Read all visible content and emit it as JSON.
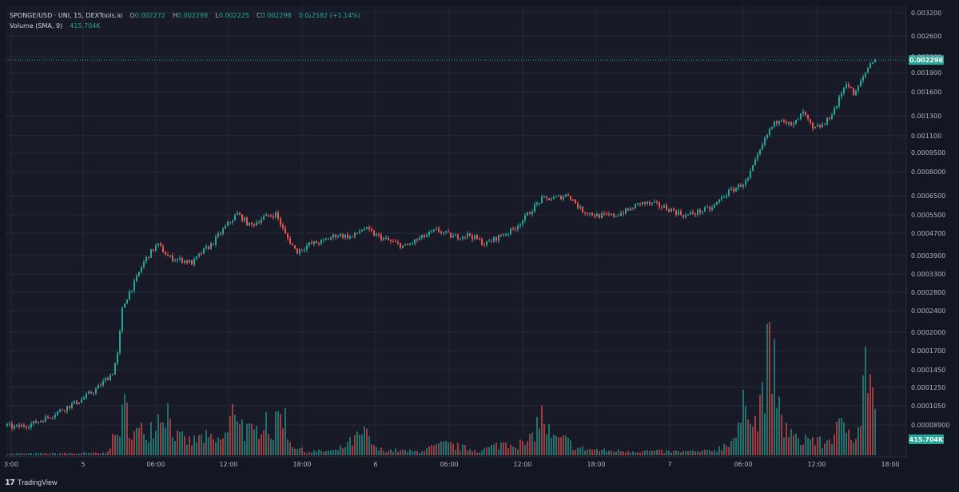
{
  "legend": {
    "symbol": "SPONGE/USD · UNI, 15, DEXTools.io",
    "o_label": "O",
    "o_value": "0.002272",
    "h_label": "H",
    "h_value": "0.002298",
    "l_label": "L",
    "l_value": "0.002225",
    "c_label": "C",
    "c_value": "0.002298",
    "change": "0.0₄2582 (+1.14%)",
    "volume_label": "Volume (SMA, 9)",
    "volume_value": "415.704K"
  },
  "brand": {
    "logo": "17",
    "name": "TradingView"
  },
  "colors": {
    "up": "#26a69a",
    "down": "#ef5350",
    "background": "#181b27",
    "grid": "#232734",
    "text": "#b2b5be"
  },
  "chart_data": {
    "type": "candlestick",
    "y_axis_labels": [
      "0.003200",
      "0.002600",
      "0.002200",
      "0.001900",
      "0.001600",
      "0.001300",
      "0.001100",
      "0.0009500",
      "0.0008000",
      "0.0006500",
      "0.0005500",
      "0.0004700",
      "0.0003900",
      "0.0003300",
      "0.0002800",
      "0.0002400",
      "0.0002000",
      "0.0001700",
      "0.0001450",
      "0.0001250",
      "0.0001050",
      "0.00008900"
    ],
    "x_axis_labels": [
      "3:00",
      "5",
      "06:00",
      "12:00",
      "18:00",
      "6",
      "06:00",
      "12:00",
      "18:00",
      "7",
      "06:00",
      "12:00",
      "18:00"
    ],
    "last_price_label": "0.002298",
    "volume_label": "415.704K",
    "price_range": [
      7.6e-05,
      0.0034
    ],
    "scale": "log",
    "price_anchors": [
      [
        0,
        9.5e-05
      ],
      [
        18,
        9.3e-05
      ],
      [
        40,
        9.6e-05
      ],
      [
        60,
        0.000102
      ],
      [
        80,
        0.00011
      ],
      [
        100,
        0.000118
      ],
      [
        120,
        0.00013
      ],
      [
        140,
        0.00015
      ],
      [
        147,
        0.00018
      ],
      [
        152,
        0.00026
      ],
      [
        160,
        0.0003
      ],
      [
        168,
        0.00033
      ],
      [
        180,
        0.0004
      ],
      [
        196,
        0.00046
      ],
      [
        210,
        0.00041
      ],
      [
        228,
        0.0004
      ],
      [
        240,
        0.00039
      ],
      [
        252,
        0.00043
      ],
      [
        264,
        0.00046
      ],
      [
        280,
        0.00053
      ],
      [
        296,
        0.0006
      ],
      [
        312,
        0.00054
      ],
      [
        328,
        0.00058
      ],
      [
        344,
        0.0006
      ],
      [
        356,
        0.0005
      ],
      [
        370,
        0.00043
      ],
      [
        386,
        0.00046
      ],
      [
        402,
        0.00047
      ],
      [
        420,
        0.0005
      ],
      [
        440,
        0.00049
      ],
      [
        454,
        0.00053
      ],
      [
        468,
        0.0005
      ],
      [
        488,
        0.00047
      ],
      [
        506,
        0.00045
      ],
      [
        522,
        0.00048
      ],
      [
        546,
        0.00052
      ],
      [
        566,
        0.00049
      ],
      [
        586,
        0.0005
      ],
      [
        606,
        0.00046
      ],
      [
        622,
        0.00049
      ],
      [
        640,
        0.00052
      ],
      [
        656,
        0.00058
      ],
      [
        676,
        0.00068
      ],
      [
        696,
        0.00069
      ],
      [
        710,
        0.00071
      ],
      [
        726,
        0.00062
      ],
      [
        746,
        0.00059
      ],
      [
        766,
        0.00059
      ],
      [
        786,
        0.00062
      ],
      [
        800,
        0.00066
      ],
      [
        820,
        0.00065
      ],
      [
        840,
        0.00062
      ],
      [
        856,
        0.00059
      ],
      [
        872,
        0.00061
      ],
      [
        890,
        0.00063
      ],
      [
        906,
        0.00071
      ],
      [
        922,
        0.00076
      ],
      [
        934,
        0.0008
      ],
      [
        948,
        0.001
      ],
      [
        962,
        0.00125
      ],
      [
        976,
        0.0014
      ],
      [
        990,
        0.00128
      ],
      [
        1004,
        0.00145
      ],
      [
        1016,
        0.00125
      ],
      [
        1032,
        0.00132
      ],
      [
        1046,
        0.00155
      ],
      [
        1058,
        0.0019
      ],
      [
        1068,
        0.00168
      ],
      [
        1078,
        0.00195
      ],
      [
        1090,
        0.00229
      ],
      [
        1096,
        0.002298
      ]
    ],
    "volume_anchors": [
      [
        0,
        0.02
      ],
      [
        130,
        0.03
      ],
      [
        146,
        0.3
      ],
      [
        156,
        0.65
      ],
      [
        166,
        0.3
      ],
      [
        184,
        0.35
      ],
      [
        196,
        0.52
      ],
      [
        206,
        0.7
      ],
      [
        220,
        0.25
      ],
      [
        238,
        0.18
      ],
      [
        254,
        0.25
      ],
      [
        270,
        0.18
      ],
      [
        284,
        0.3
      ],
      [
        294,
        0.75
      ],
      [
        304,
        0.35
      ],
      [
        318,
        0.28
      ],
      [
        330,
        0.62
      ],
      [
        340,
        0.25
      ],
      [
        352,
        0.72
      ],
      [
        362,
        0.18
      ],
      [
        380,
        0.05
      ],
      [
        420,
        0.06
      ],
      [
        456,
        0.3
      ],
      [
        470,
        0.08
      ],
      [
        520,
        0.05
      ],
      [
        556,
        0.15
      ],
      [
        600,
        0.06
      ],
      [
        632,
        0.18
      ],
      [
        660,
        0.15
      ],
      [
        676,
        0.55
      ],
      [
        690,
        0.22
      ],
      [
        708,
        0.2
      ],
      [
        720,
        0.1
      ],
      [
        760,
        0.06
      ],
      [
        800,
        0.06
      ],
      [
        840,
        0.05
      ],
      [
        880,
        0.05
      ],
      [
        900,
        0.1
      ],
      [
        922,
        0.28
      ],
      [
        936,
        0.95
      ],
      [
        946,
        0.35
      ],
      [
        958,
        1.3
      ],
      [
        966,
        1.25
      ],
      [
        976,
        0.45
      ],
      [
        984,
        0.35
      ],
      [
        996,
        0.2
      ],
      [
        1010,
        0.25
      ],
      [
        1030,
        0.15
      ],
      [
        1046,
        0.35
      ],
      [
        1058,
        0.4
      ],
      [
        1068,
        0.3
      ],
      [
        1076,
        0.55
      ],
      [
        1083,
        1.4
      ],
      [
        1090,
        0.95
      ],
      [
        1096,
        0.45
      ]
    ]
  }
}
